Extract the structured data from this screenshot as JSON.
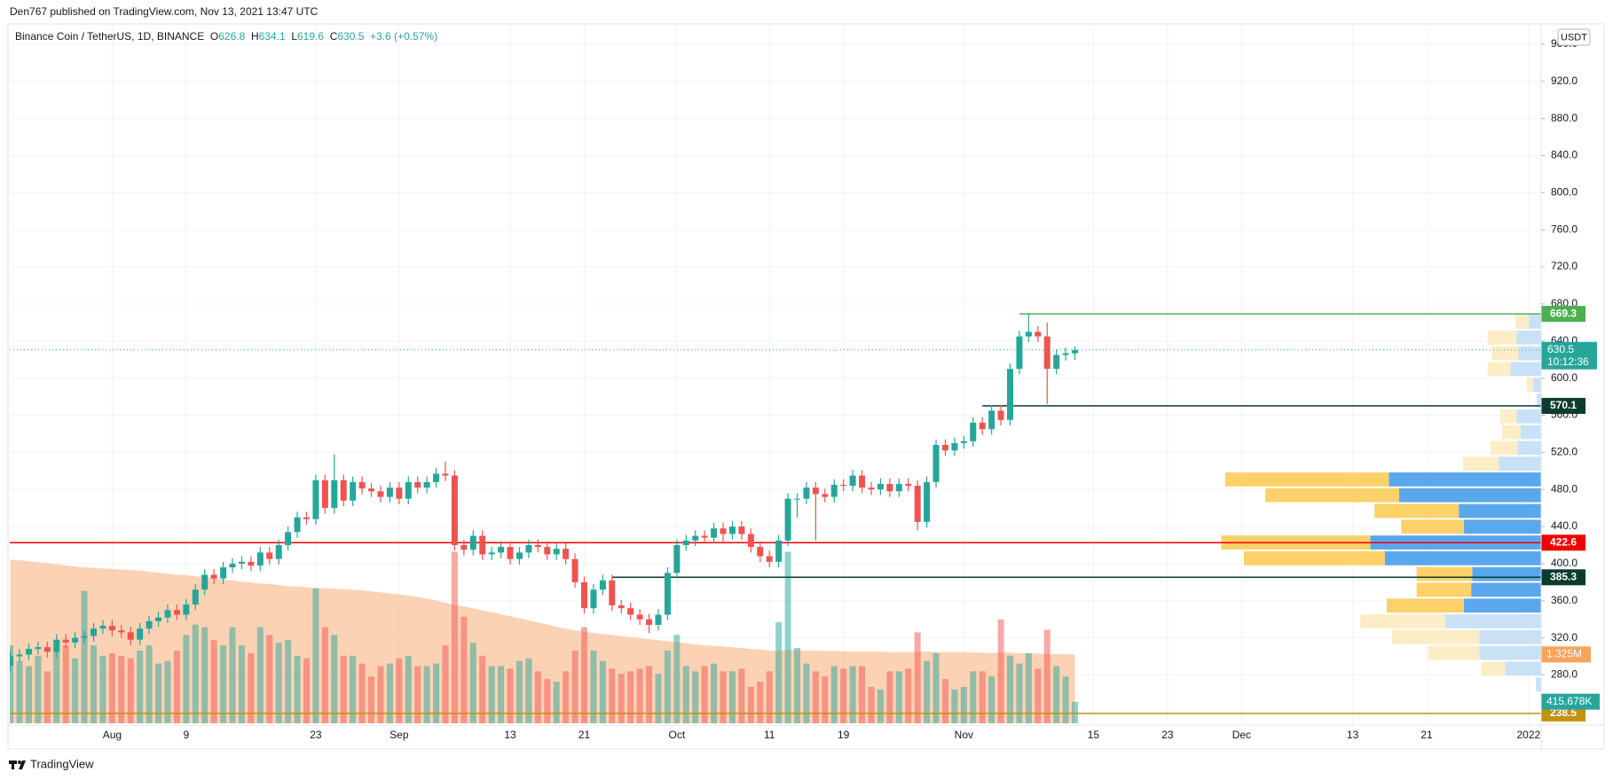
{
  "chart_data": {
    "type": "candlestick",
    "title": "Binance Coin / TetherUS, 1D, BINANCE",
    "published": "Den767 published on TradingView.com, Nov 13, 2021 13:47 UTC",
    "brand": "TradingView",
    "currency": "USDT",
    "legend_labels": [
      "O",
      "H",
      "L",
      "C"
    ],
    "change": "+3.6 (+0.57%)",
    "countdown": "10:12:36",
    "up_color": "#26a69a",
    "down_color": "#ef5350",
    "volume_ma_color": "#f9a66c",
    "grid": true,
    "x": [
      "2021-07-21",
      "2021-07-22",
      "2021-07-23",
      "2021-07-24",
      "2021-07-25",
      "2021-07-26",
      "2021-07-27",
      "2021-07-28",
      "2021-07-29",
      "2021-07-30",
      "2021-07-31",
      "2021-08-01",
      "2021-08-02",
      "2021-08-03",
      "2021-08-04",
      "2021-08-05",
      "2021-08-06",
      "2021-08-07",
      "2021-08-08",
      "2021-08-09",
      "2021-08-10",
      "2021-08-11",
      "2021-08-12",
      "2021-08-13",
      "2021-08-14",
      "2021-08-15",
      "2021-08-16",
      "2021-08-17",
      "2021-08-18",
      "2021-08-19",
      "2021-08-20",
      "2021-08-21",
      "2021-08-22",
      "2021-08-23",
      "2021-08-24",
      "2021-08-25",
      "2021-08-26",
      "2021-08-27",
      "2021-08-28",
      "2021-08-29",
      "2021-08-30",
      "2021-08-31",
      "2021-09-01",
      "2021-09-02",
      "2021-09-03",
      "2021-09-04",
      "2021-09-05",
      "2021-09-06",
      "2021-09-07",
      "2021-09-08",
      "2021-09-09",
      "2021-09-10",
      "2021-09-11",
      "2021-09-12",
      "2021-09-13",
      "2021-09-14",
      "2021-09-15",
      "2021-09-16",
      "2021-09-17",
      "2021-09-18",
      "2021-09-19",
      "2021-09-20",
      "2021-09-21",
      "2021-09-22",
      "2021-09-23",
      "2021-09-24",
      "2021-09-25",
      "2021-09-26",
      "2021-09-27",
      "2021-09-28",
      "2021-09-29",
      "2021-09-30",
      "2021-10-01",
      "2021-10-02",
      "2021-10-03",
      "2021-10-04",
      "2021-10-05",
      "2021-10-06",
      "2021-10-07",
      "2021-10-08",
      "2021-10-09",
      "2021-10-10",
      "2021-10-11",
      "2021-10-12",
      "2021-10-13",
      "2021-10-14",
      "2021-10-15",
      "2021-10-16",
      "2021-10-17",
      "2021-10-18",
      "2021-10-19",
      "2021-10-20",
      "2021-10-21",
      "2021-10-22",
      "2021-10-23",
      "2021-10-24",
      "2021-10-25",
      "2021-10-26",
      "2021-10-27",
      "2021-10-28",
      "2021-10-29",
      "2021-10-30",
      "2021-10-31",
      "2021-11-01",
      "2021-11-02",
      "2021-11-03",
      "2021-11-04",
      "2021-11-05",
      "2021-11-06",
      "2021-11-07",
      "2021-11-08",
      "2021-11-09",
      "2021-11-10",
      "2021-11-11",
      "2021-11-12",
      "2021-11-13"
    ],
    "open": [
      290,
      300,
      302,
      308,
      310,
      305,
      318,
      315,
      320,
      322,
      330,
      333,
      328,
      326,
      318,
      330,
      338,
      342,
      350,
      345,
      356,
      372,
      388,
      384,
      396,
      400,
      402,
      398,
      412,
      405,
      420,
      434,
      450,
      448,
      490,
      460,
      490,
      468,
      488,
      481,
      478,
      472,
      482,
      470,
      488,
      482,
      488,
      497,
      495,
      420,
      415,
      430,
      410,
      412,
      418,
      405,
      412,
      420,
      418,
      410,
      416,
      405,
      380,
      352,
      372,
      382,
      355,
      352,
      345,
      340,
      334,
      345,
      390,
      420,
      425,
      430,
      428,
      438,
      432,
      440,
      432,
      418,
      408,
      402,
      425,
      470,
      470,
      482,
      475,
      472,
      485,
      484,
      495,
      482,
      480,
      486,
      478,
      486,
      484,
      445,
      488,
      528,
      522,
      530,
      532,
      552,
      545,
      565,
      555,
      610,
      645,
      650,
      645,
      610,
      625,
      626.8
    ],
    "high": [
      306,
      308,
      314,
      316,
      316,
      324,
      324,
      326,
      328,
      336,
      339,
      339,
      334,
      332,
      336,
      344,
      348,
      356,
      356,
      362,
      378,
      394,
      394,
      402,
      406,
      408,
      408,
      418,
      418,
      426,
      440,
      456,
      456,
      496,
      496,
      518,
      496,
      494,
      494,
      487,
      484,
      488,
      488,
      494,
      494,
      494,
      503,
      510,
      501,
      426,
      436,
      436,
      418,
      424,
      424,
      418,
      426,
      426,
      424,
      422,
      422,
      411,
      386,
      378,
      388,
      388,
      361,
      358,
      351,
      346,
      351,
      396,
      426,
      431,
      436,
      436,
      444,
      444,
      446,
      446,
      438,
      424,
      414,
      431,
      476,
      476,
      488,
      488,
      481,
      491,
      491,
      501,
      501,
      488,
      492,
      492,
      492,
      492,
      490,
      494,
      534,
      534,
      536,
      538,
      558,
      558,
      571,
      571,
      616,
      651,
      669.3,
      656,
      660,
      631,
      632.9,
      634.1
    ],
    "low": [
      284,
      294,
      296,
      302,
      299,
      299,
      309,
      309,
      314,
      316,
      324,
      322,
      320,
      312,
      312,
      324,
      332,
      336,
      339,
      339,
      350,
      366,
      378,
      378,
      390,
      394,
      392,
      392,
      399,
      399,
      414,
      428,
      442,
      442,
      454,
      454,
      462,
      462,
      475,
      472,
      466,
      466,
      464,
      464,
      476,
      476,
      482,
      489,
      414,
      409,
      409,
      404,
      404,
      406,
      399,
      399,
      406,
      412,
      404,
      404,
      399,
      374,
      346,
      346,
      366,
      349,
      346,
      339,
      334,
      325,
      328,
      339,
      384,
      414,
      419,
      424,
      422,
      422,
      426,
      426,
      412,
      402,
      396,
      396,
      419,
      450,
      464,
      425,
      466,
      466,
      478,
      478,
      476,
      474,
      474,
      472,
      472,
      478,
      436,
      439,
      482,
      516,
      516,
      524,
      526,
      539,
      539,
      549,
      549,
      604,
      639,
      639,
      572,
      604,
      619,
      619.6
    ],
    "close": [
      300,
      302,
      308,
      310,
      305,
      318,
      315,
      320,
      322,
      330,
      333,
      328,
      326,
      318,
      330,
      338,
      342,
      350,
      345,
      356,
      372,
      388,
      384,
      396,
      400,
      402,
      398,
      412,
      405,
      420,
      434,
      450,
      448,
      490,
      460,
      490,
      468,
      488,
      481,
      478,
      472,
      482,
      470,
      488,
      482,
      488,
      497,
      495,
      420,
      415,
      430,
      410,
      412,
      418,
      405,
      412,
      420,
      418,
      410,
      416,
      405,
      380,
      352,
      372,
      382,
      355,
      352,
      345,
      340,
      334,
      345,
      390,
      420,
      425,
      430,
      428,
      438,
      432,
      440,
      432,
      418,
      408,
      402,
      425,
      470,
      470,
      482,
      475,
      472,
      485,
      484,
      495,
      482,
      480,
      486,
      478,
      486,
      484,
      445,
      488,
      528,
      522,
      530,
      532,
      552,
      545,
      565,
      555,
      610,
      645,
      650,
      645,
      610,
      625,
      626.9,
      630.5
    ],
    "volume": [
      1500,
      1200,
      1100,
      1300,
      1000,
      1400,
      1500,
      1250,
      2550,
      1500,
      1300,
      1350,
      1300,
      1250,
      1400,
      1500,
      1150,
      1200,
      1400,
      1700,
      1900,
      1850,
      1600,
      1500,
      1850,
      1500,
      1350,
      1850,
      1700,
      1550,
      1600,
      1300,
      1250,
      2600,
      1850,
      1700,
      1300,
      1300,
      1150,
      900,
      1100,
      1150,
      1250,
      1300,
      1100,
      1100,
      1150,
      1500,
      3300,
      2050,
      1550,
      1300,
      1100,
      1100,
      1050,
      1200,
      1250,
      1000,
      850,
      800,
      1000,
      1400,
      1850,
      1400,
      1200,
      1050,
      950,
      1000,
      1050,
      1100,
      950,
      1400,
      1700,
      1100,
      1000,
      1100,
      1150,
      1000,
      1000,
      1050,
      700,
      800,
      1000,
      1950,
      3300,
      1450,
      1150,
      1000,
      900,
      1100,
      1050,
      1100,
      1100,
      700,
      650,
      1000,
      1000,
      1050,
      1750,
      1200,
      1350,
      850,
      650,
      700,
      1000,
      1000,
      900,
      2000,
      1300,
      1150,
      1350,
      1050,
      1800,
      1100,
      900,
      415.678
    ],
    "volume_label": "415.678K",
    "volume_ma": [
      3150,
      3140,
      3120,
      3100,
      3080,
      3060,
      3040,
      3020,
      3000,
      2990,
      2980,
      2970,
      2960,
      2950,
      2940,
      2920,
      2900,
      2880,
      2860,
      2850,
      2830,
      2810,
      2790,
      2770,
      2750,
      2730,
      2710,
      2690,
      2680,
      2660,
      2640,
      2630,
      2620,
      2600,
      2600,
      2590,
      2580,
      2570,
      2560,
      2540,
      2520,
      2500,
      2480,
      2460,
      2430,
      2400,
      2360,
      2320,
      2280,
      2250,
      2210,
      2170,
      2140,
      2100,
      2060,
      2020,
      1980,
      1940,
      1900,
      1860,
      1820,
      1790,
      1760,
      1740,
      1720,
      1700,
      1680,
      1660,
      1640,
      1620,
      1600,
      1580,
      1560,
      1540,
      1520,
      1500,
      1490,
      1480,
      1460,
      1450,
      1430,
      1420,
      1400,
      1400,
      1410,
      1410,
      1400,
      1400,
      1390,
      1390,
      1390,
      1380,
      1380,
      1380,
      1380,
      1370,
      1370,
      1370,
      1380,
      1380,
      1370,
      1370,
      1370,
      1370,
      1360,
      1360,
      1350,
      1360,
      1360,
      1350,
      1350,
      1340,
      1340,
      1330,
      1330,
      1325
    ],
    "volume_ma_label": "1.325M",
    "vlim": [
      0,
      3600
    ],
    "xlim": [
      "2021-07-20",
      "2022-01-03"
    ],
    "xticks": [
      {
        "value": "2021-08-01",
        "label": "Aug"
      },
      {
        "value": "2021-08-09",
        "label": "9"
      },
      {
        "value": "2021-08-23",
        "label": "23"
      },
      {
        "value": "2021-09-01",
        "label": "Sep"
      },
      {
        "value": "2021-09-13",
        "label": "13"
      },
      {
        "value": "2021-09-21",
        "label": "21"
      },
      {
        "value": "2021-10-01",
        "label": "Oct"
      },
      {
        "value": "2021-10-11",
        "label": "11"
      },
      {
        "value": "2021-10-19",
        "label": "19"
      },
      {
        "value": "2021-11-01",
        "label": "Nov"
      },
      {
        "value": "2021-11-15",
        "label": "15"
      },
      {
        "value": "2021-11-23",
        "label": "23"
      },
      {
        "value": "2021-12-01",
        "label": "Dec"
      },
      {
        "value": "2021-12-13",
        "label": "13"
      },
      {
        "value": "2021-12-21",
        "label": "21"
      },
      {
        "value": "2022-01-01",
        "label": "2022"
      }
    ],
    "ylim": [
      226,
      980
    ],
    "yticks": [
      {
        "value": 280,
        "label": "280.0"
      },
      {
        "value": 320,
        "label": "320.0"
      },
      {
        "value": 360,
        "label": "360.0"
      },
      {
        "value": 400,
        "label": "400.0"
      },
      {
        "value": 440,
        "label": "440.0"
      },
      {
        "value": 480,
        "label": "480.0"
      },
      {
        "value": 520,
        "label": "520.0"
      },
      {
        "value": 560,
        "label": "560.0"
      },
      {
        "value": 600,
        "label": "600.0"
      },
      {
        "value": 640,
        "label": "640.0"
      },
      {
        "value": 680,
        "label": "680.0"
      },
      {
        "value": 720,
        "label": "720.0"
      },
      {
        "value": 760,
        "label": "760.0"
      },
      {
        "value": 800,
        "label": "800.0"
      },
      {
        "value": 840,
        "label": "840.0"
      },
      {
        "value": 880,
        "label": "880.0"
      },
      {
        "value": 920,
        "label": "920.0"
      },
      {
        "value": 960,
        "label": "960.0"
      }
    ],
    "levels": [
      {
        "value": 669.3,
        "color": "#4caf50",
        "from": "2021-11-07"
      },
      {
        "value": 570.1,
        "color": "#0b3d2e",
        "from": "2021-11-03"
      },
      {
        "value": 422.6,
        "color": "#f20000"
      },
      {
        "value": 385.3,
        "color": "#0b3d2e",
        "from": "2021-09-24"
      },
      {
        "value": 238.5,
        "color": "#c4900f"
      }
    ],
    "profile": {
      "bins": [
        261.3,
        278.3,
        295.3,
        312.3,
        329.3,
        346.3,
        363.3,
        380.3,
        397.3,
        414.3,
        431.3,
        448.3,
        465.3,
        482.3,
        499.3,
        516.3,
        533.3,
        550.3,
        567.3,
        584.3,
        601.3,
        618.3,
        635.3,
        652.3,
        669.3
      ],
      "up": [
        5,
        35,
        60,
        60,
        93,
        75,
        68,
        67,
        152,
        166,
        75,
        80,
        138,
        148,
        41,
        23,
        20,
        24,
        4,
        8,
        30,
        22,
        24,
        12
      ],
      "down": [
        0,
        23,
        50,
        85,
        83,
        75,
        53,
        54,
        137,
        145,
        61,
        82,
        130,
        159,
        35,
        26,
        18,
        16,
        0,
        6,
        22,
        26,
        28,
        13
      ],
      "value_area": [
        346.3,
        499.3
      ],
      "up_color": "#5ba7ed",
      "down_color": "#fbd168",
      "up_color_outside": "#c9e1f7",
      "down_color_outside": "#fdedc6"
    }
  }
}
